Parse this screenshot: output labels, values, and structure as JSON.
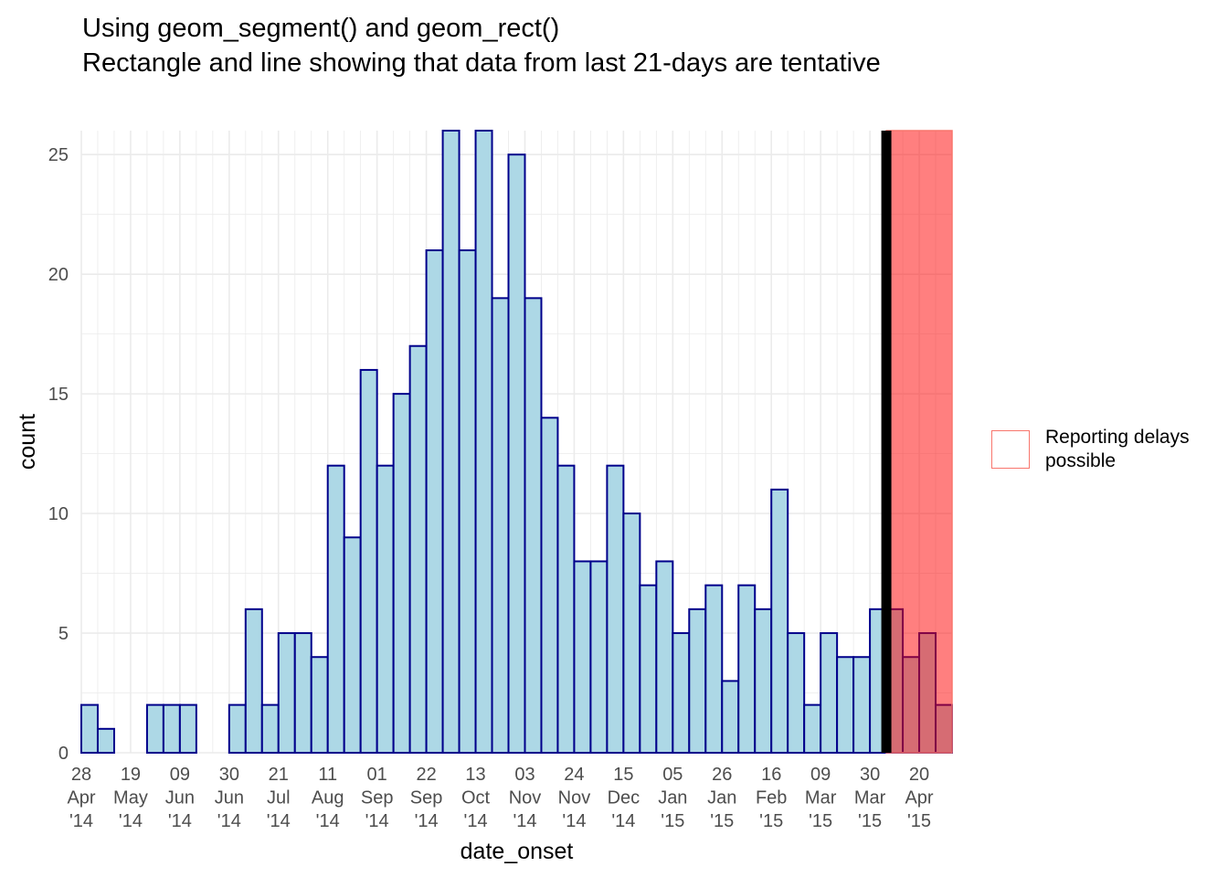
{
  "title": "Using geom_segment() and geom_rect()",
  "subtitle": "Rectangle and line showing that data from last 21-days are tentative",
  "legend": {
    "label": "Reporting delays possible"
  },
  "chart_data": {
    "type": "bar",
    "title": "Using geom_segment() and geom_rect()",
    "subtitle": "Rectangle and line showing that data from last 21-days are tentative",
    "xlabel": "date_onset",
    "ylabel": "count",
    "ylim": [
      0,
      26
    ],
    "yticks": [
      0,
      5,
      10,
      15,
      20,
      25
    ],
    "bin_width_days": 7,
    "bin_starts": [
      "2014-04-28",
      "2014-05-05",
      "2014-05-12",
      "2014-05-19",
      "2014-05-26",
      "2014-06-02",
      "2014-06-09",
      "2014-06-16",
      "2014-06-23",
      "2014-06-30",
      "2014-07-07",
      "2014-07-14",
      "2014-07-21",
      "2014-07-28",
      "2014-08-04",
      "2014-08-11",
      "2014-08-18",
      "2014-08-25",
      "2014-09-01",
      "2014-09-08",
      "2014-09-15",
      "2014-09-22",
      "2014-09-29",
      "2014-10-06",
      "2014-10-13",
      "2014-10-20",
      "2014-10-27",
      "2014-11-03",
      "2014-11-10",
      "2014-11-17",
      "2014-11-24",
      "2014-12-01",
      "2014-12-08",
      "2014-12-15",
      "2014-12-22",
      "2014-12-29",
      "2015-01-05",
      "2015-01-12",
      "2015-01-19",
      "2015-01-26",
      "2015-02-02",
      "2015-02-09",
      "2015-02-16",
      "2015-02-23",
      "2015-03-02",
      "2015-03-09",
      "2015-03-16",
      "2015-03-23",
      "2015-03-30",
      "2015-04-06",
      "2015-04-13",
      "2015-04-20",
      "2015-04-27"
    ],
    "values": [
      2,
      1,
      0,
      0,
      2,
      2,
      2,
      0,
      0,
      2,
      6,
      2,
      5,
      5,
      4,
      12,
      9,
      16,
      12,
      15,
      17,
      21,
      27,
      21,
      26,
      19,
      25,
      19,
      14,
      12,
      8,
      8,
      12,
      10,
      7,
      8,
      5,
      6,
      7,
      3,
      7,
      6,
      11,
      5,
      2,
      5,
      4,
      4,
      6,
      6,
      4,
      5,
      2
    ],
    "x_ticks": [
      {
        "date": "2014-04-28",
        "lines": [
          "28",
          "Apr",
          "'14"
        ]
      },
      {
        "date": "2014-05-19",
        "lines": [
          "19",
          "May",
          "'14"
        ]
      },
      {
        "date": "2014-06-09",
        "lines": [
          "09",
          "Jun",
          "'14"
        ]
      },
      {
        "date": "2014-06-30",
        "lines": [
          "30",
          "Jun",
          "'14"
        ]
      },
      {
        "date": "2014-07-21",
        "lines": [
          "21",
          "Jul",
          "'14"
        ]
      },
      {
        "date": "2014-08-11",
        "lines": [
          "11",
          "Aug",
          "'14"
        ]
      },
      {
        "date": "2014-09-01",
        "lines": [
          "01",
          "Sep",
          "'14"
        ]
      },
      {
        "date": "2014-09-22",
        "lines": [
          "22",
          "Sep",
          "'14"
        ]
      },
      {
        "date": "2014-10-13",
        "lines": [
          "13",
          "Oct",
          "'14"
        ]
      },
      {
        "date": "2014-11-03",
        "lines": [
          "03",
          "Nov",
          "'14"
        ]
      },
      {
        "date": "2014-11-24",
        "lines": [
          "24",
          "Nov",
          "'14"
        ]
      },
      {
        "date": "2014-12-15",
        "lines": [
          "15",
          "Dec",
          "'14"
        ]
      },
      {
        "date": "2015-01-05",
        "lines": [
          "05",
          "Jan",
          "'15"
        ]
      },
      {
        "date": "2015-01-26",
        "lines": [
          "26",
          "Jan",
          "'15"
        ]
      },
      {
        "date": "2015-02-16",
        "lines": [
          "16",
          "Feb",
          "'15"
        ]
      },
      {
        "date": "2015-03-09",
        "lines": [
          "09",
          "Mar",
          "'15"
        ]
      },
      {
        "date": "2015-03-30",
        "lines": [
          "30",
          "Mar",
          "'15"
        ]
      },
      {
        "date": "2015-04-20",
        "lines": [
          "20",
          "Apr",
          "'15"
        ]
      }
    ],
    "x_range": [
      "2014-04-28",
      "2015-05-04"
    ],
    "tentative_period": {
      "start": "2015-04-06",
      "end": "2015-05-04"
    },
    "cutoff_date": "2015-04-06",
    "colors": {
      "bar_fill": "#add8e6",
      "bar_outline": "#00008b",
      "rect_fill": "#ff0000",
      "rect_outline": "#f8766d",
      "segment": "#000000",
      "grid": "#ebebeb"
    },
    "grid": true,
    "legend_position": "right"
  }
}
